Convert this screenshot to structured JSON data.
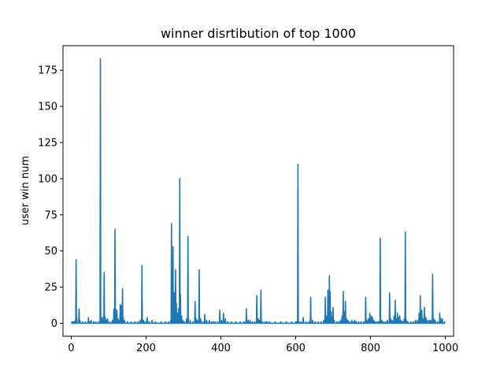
{
  "chart_data": {
    "type": "line",
    "title": "winner disrtibution of top 1000",
    "xlabel": "",
    "ylabel": "user win num",
    "xlim": [
      -22,
      1022
    ],
    "ylim": [
      -9,
      192
    ],
    "xticks": [
      0,
      200,
      400,
      600,
      800,
      1000
    ],
    "yticks": [
      0,
      25,
      50,
      75,
      100,
      125,
      150,
      175
    ],
    "grid": false,
    "line_color": "#1f77b4",
    "spikes": [
      [
        2,
        1
      ],
      [
        5,
        1
      ],
      [
        8,
        1
      ],
      [
        11,
        2
      ],
      [
        13,
        44
      ],
      [
        15,
        3
      ],
      [
        21,
        10
      ],
      [
        23,
        2
      ],
      [
        30,
        1
      ],
      [
        38,
        1
      ],
      [
        46,
        4
      ],
      [
        50,
        1
      ],
      [
        53,
        2
      ],
      [
        60,
        1
      ],
      [
        66,
        1
      ],
      [
        73,
        1
      ],
      [
        78,
        183
      ],
      [
        80,
        3
      ],
      [
        83,
        4
      ],
      [
        86,
        2
      ],
      [
        88,
        35
      ],
      [
        91,
        4
      ],
      [
        94,
        2
      ],
      [
        97,
        3
      ],
      [
        103,
        1
      ],
      [
        110,
        2
      ],
      [
        114,
        10
      ],
      [
        117,
        65
      ],
      [
        119,
        9
      ],
      [
        122,
        9
      ],
      [
        125,
        3
      ],
      [
        128,
        2
      ],
      [
        131,
        13
      ],
      [
        134,
        12
      ],
      [
        137,
        24
      ],
      [
        139,
        4
      ],
      [
        142,
        2
      ],
      [
        150,
        1
      ],
      [
        160,
        1
      ],
      [
        170,
        1
      ],
      [
        178,
        1
      ],
      [
        184,
        2
      ],
      [
        189,
        40
      ],
      [
        193,
        2
      ],
      [
        198,
        1
      ],
      [
        203,
        4
      ],
      [
        208,
        1
      ],
      [
        216,
        2
      ],
      [
        225,
        1
      ],
      [
        240,
        1
      ],
      [
        252,
        1
      ],
      [
        260,
        1
      ],
      [
        266,
        2
      ],
      [
        268,
        69
      ],
      [
        270,
        15
      ],
      [
        272,
        53
      ],
      [
        274,
        8
      ],
      [
        276,
        21
      ],
      [
        279,
        37
      ],
      [
        281,
        14
      ],
      [
        284,
        7
      ],
      [
        287,
        10
      ],
      [
        290,
        100
      ],
      [
        292,
        20
      ],
      [
        295,
        5
      ],
      [
        298,
        2
      ],
      [
        302,
        1
      ],
      [
        308,
        3
      ],
      [
        312,
        60
      ],
      [
        318,
        2
      ],
      [
        325,
        1
      ],
      [
        331,
        15
      ],
      [
        334,
        3
      ],
      [
        337,
        2
      ],
      [
        342,
        37
      ],
      [
        346,
        3
      ],
      [
        352,
        1
      ],
      [
        357,
        6
      ],
      [
        362,
        2
      ],
      [
        369,
        2
      ],
      [
        375,
        1
      ],
      [
        380,
        1
      ],
      [
        384,
        1
      ],
      [
        391,
        1
      ],
      [
        397,
        9
      ],
      [
        402,
        2
      ],
      [
        407,
        7
      ],
      [
        412,
        3
      ],
      [
        418,
        1
      ],
      [
        428,
        1
      ],
      [
        440,
        1
      ],
      [
        452,
        1
      ],
      [
        462,
        1
      ],
      [
        468,
        10
      ],
      [
        473,
        2
      ],
      [
        478,
        2
      ],
      [
        484,
        1
      ],
      [
        490,
        1
      ],
      [
        496,
        19
      ],
      [
        500,
        3
      ],
      [
        503,
        2
      ],
      [
        507,
        23
      ],
      [
        511,
        1
      ],
      [
        518,
        1
      ],
      [
        523,
        1
      ],
      [
        530,
        1
      ],
      [
        545,
        1
      ],
      [
        560,
        1
      ],
      [
        575,
        1
      ],
      [
        590,
        1
      ],
      [
        600,
        1
      ],
      [
        603,
        1
      ],
      [
        606,
        110
      ],
      [
        609,
        1
      ],
      [
        614,
        1
      ],
      [
        620,
        4
      ],
      [
        627,
        1
      ],
      [
        635,
        1
      ],
      [
        640,
        18
      ],
      [
        645,
        2
      ],
      [
        652,
        1
      ],
      [
        660,
        1
      ],
      [
        668,
        1
      ],
      [
        675,
        2
      ],
      [
        679,
        18
      ],
      [
        681,
        3
      ],
      [
        683,
        5
      ],
      [
        686,
        23
      ],
      [
        688,
        12
      ],
      [
        690,
        33
      ],
      [
        692,
        22
      ],
      [
        695,
        8
      ],
      [
        697,
        4
      ],
      [
        700,
        11
      ],
      [
        703,
        2
      ],
      [
        710,
        1
      ],
      [
        715,
        1
      ],
      [
        720,
        2
      ],
      [
        724,
        5
      ],
      [
        727,
        22
      ],
      [
        730,
        8
      ],
      [
        733,
        15
      ],
      [
        736,
        3
      ],
      [
        740,
        2
      ],
      [
        745,
        1
      ],
      [
        750,
        2
      ],
      [
        755,
        1
      ],
      [
        758,
        2
      ],
      [
        762,
        1
      ],
      [
        768,
        1
      ],
      [
        775,
        1
      ],
      [
        782,
        1
      ],
      [
        787,
        18
      ],
      [
        790,
        2
      ],
      [
        794,
        3
      ],
      [
        798,
        7
      ],
      [
        802,
        5
      ],
      [
        805,
        4
      ],
      [
        809,
        2
      ],
      [
        813,
        1
      ],
      [
        818,
        1
      ],
      [
        822,
        1
      ],
      [
        826,
        59
      ],
      [
        830,
        2
      ],
      [
        835,
        1
      ],
      [
        840,
        1
      ],
      [
        845,
        2
      ],
      [
        851,
        21
      ],
      [
        854,
        3
      ],
      [
        858,
        2
      ],
      [
        863,
        5
      ],
      [
        866,
        16
      ],
      [
        869,
        3
      ],
      [
        872,
        7
      ],
      [
        875,
        4
      ],
      [
        878,
        5
      ],
      [
        882,
        2
      ],
      [
        886,
        1
      ],
      [
        890,
        3
      ],
      [
        893,
        63
      ],
      [
        896,
        2
      ],
      [
        900,
        1
      ],
      [
        908,
        1
      ],
      [
        915,
        1
      ],
      [
        920,
        2
      ],
      [
        925,
        2
      ],
      [
        930,
        7
      ],
      [
        933,
        19
      ],
      [
        937,
        9
      ],
      [
        940,
        3
      ],
      [
        944,
        11
      ],
      [
        948,
        4
      ],
      [
        952,
        2
      ],
      [
        957,
        2
      ],
      [
        961,
        2
      ],
      [
        966,
        34
      ],
      [
        969,
        3
      ],
      [
        973,
        2
      ],
      [
        979,
        1
      ],
      [
        985,
        7
      ],
      [
        988,
        3
      ],
      [
        992,
        3
      ],
      [
        998,
        1
      ]
    ]
  }
}
